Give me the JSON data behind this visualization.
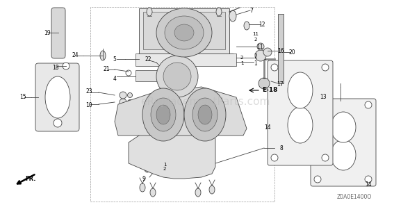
{
  "background_color": "#ffffff",
  "line_color": "#444444",
  "watermark": "eReplacementParts.com",
  "diagram_code": "Z0A0E1400O",
  "reference": "E-18",
  "direction_label": "FR."
}
